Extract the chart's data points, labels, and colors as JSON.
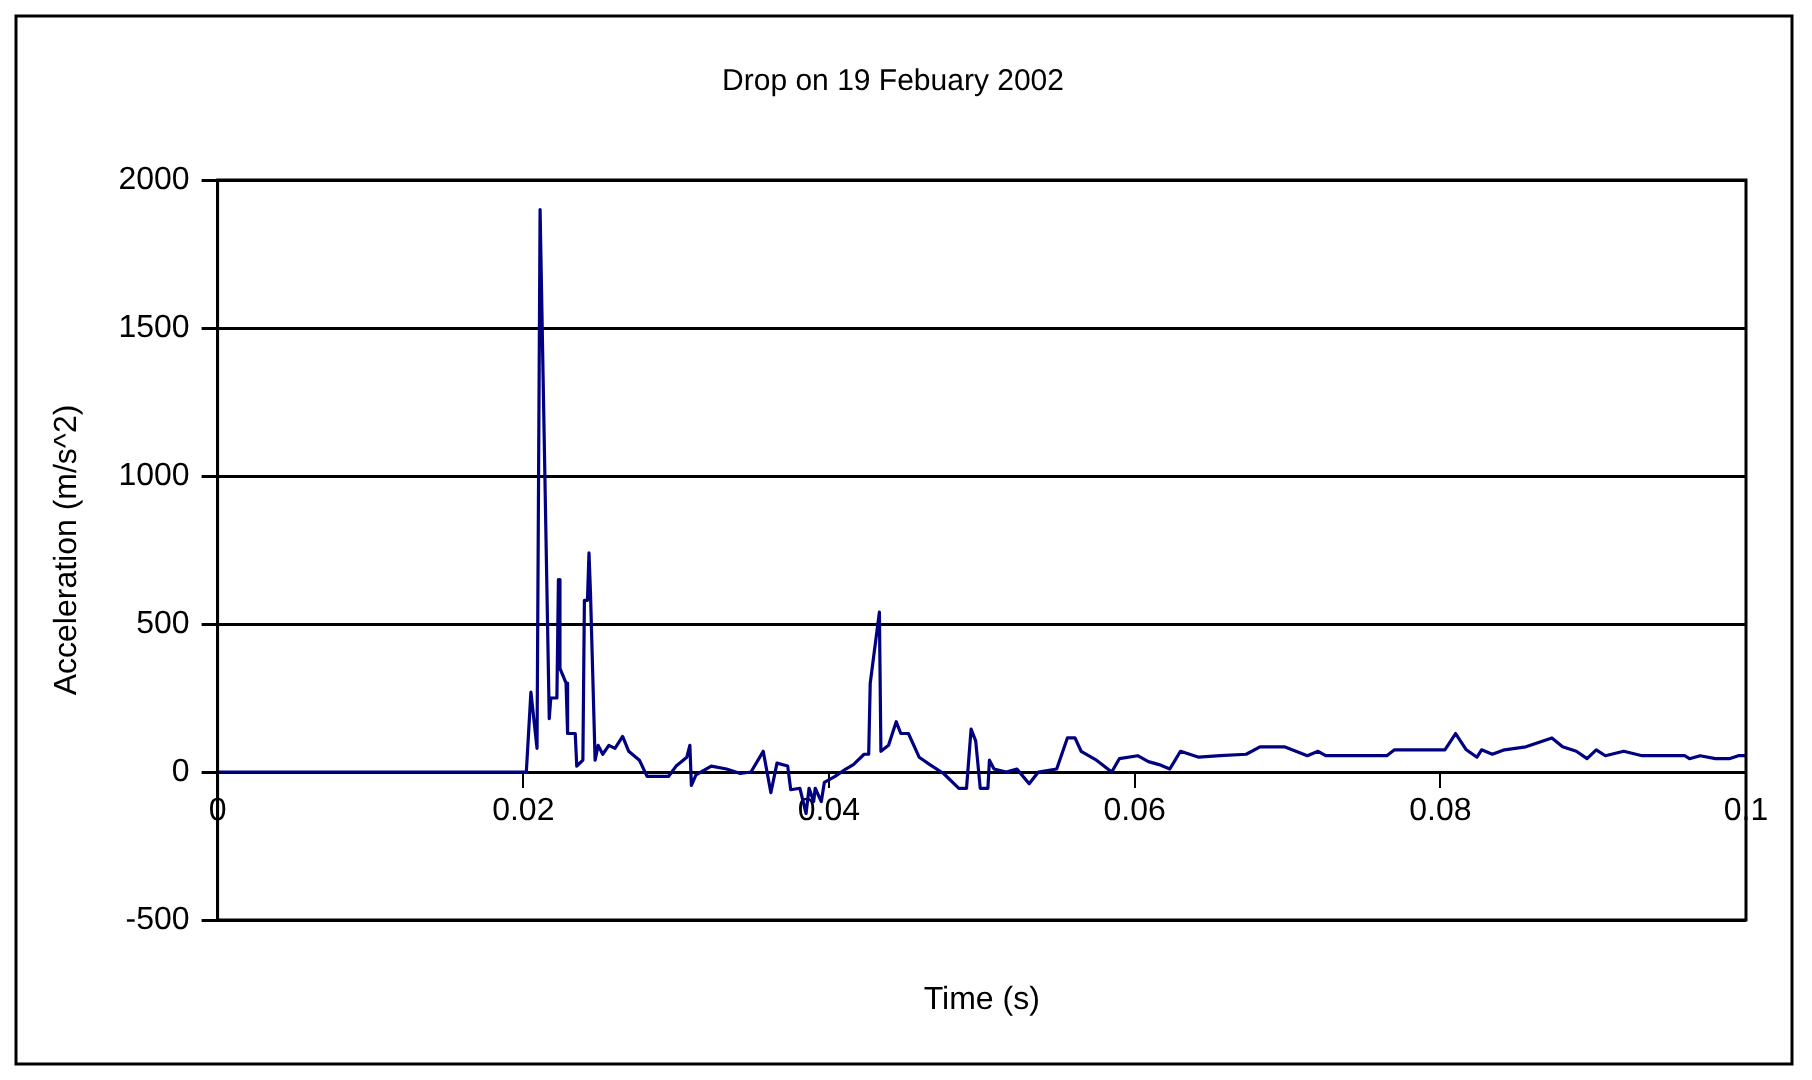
{
  "chart_data": {
    "type": "line",
    "title": "Drop on 19 Febuary 2002",
    "xlabel": "Time (s)",
    "ylabel": "Acceleration (m/s^2)",
    "xlim": [
      0,
      0.1
    ],
    "xticks": [
      0,
      0.02,
      0.04,
      0.06,
      0.08,
      0.1
    ],
    "ylim": [
      -500,
      2000
    ],
    "yticks": [
      -500,
      0,
      500,
      1000,
      1500,
      2000
    ],
    "grid": "y",
    "legend": false,
    "marker": "none",
    "line_style": "solid",
    "series": [
      {
        "color": "#000080",
        "x": [
          0,
          0.0202,
          0.0205,
          0.0209,
          0.0211,
          0.0217,
          0.0218,
          0.0222,
          0.0223,
          0.0224,
          0.0228,
          0.0229,
          0.0234,
          0.0235,
          0.0239,
          0.024,
          0.0242,
          0.0243,
          0.0244,
          0.0247,
          0.0249,
          0.0252,
          0.0256,
          0.026,
          0.0265,
          0.0269,
          0.0276,
          0.0281,
          0.0295,
          0.03,
          0.0307,
          0.0309,
          0.031,
          0.0313,
          0.0323,
          0.0333,
          0.0342,
          0.0349,
          0.0357,
          0.0362,
          0.0366,
          0.0373,
          0.0375,
          0.0381,
          0.0385,
          0.0387,
          0.039,
          0.0391,
          0.0395,
          0.0397,
          0.0404,
          0.0411,
          0.0416,
          0.0423,
          0.0426,
          0.0427,
          0.0433,
          0.0434,
          0.0439,
          0.0444,
          0.0447,
          0.0452,
          0.0459,
          0.0466,
          0.0475,
          0.0485,
          0.049,
          0.0493,
          0.0496,
          0.0499,
          0.0504,
          0.0505,
          0.0508,
          0.0516,
          0.0523,
          0.0531,
          0.0537,
          0.0549,
          0.0556,
          0.0561,
          0.0565,
          0.0575,
          0.0585,
          0.059,
          0.0602,
          0.0609,
          0.0616,
          0.0623,
          0.063,
          0.0642,
          0.0656,
          0.0673,
          0.0682,
          0.0698,
          0.0713,
          0.072,
          0.0725,
          0.0765,
          0.077,
          0.0779,
          0.0803,
          0.081,
          0.0817,
          0.0824,
          0.0827,
          0.0834,
          0.0842,
          0.0856,
          0.0873,
          0.088,
          0.0889,
          0.0896,
          0.0902,
          0.0908,
          0.092,
          0.0932,
          0.096,
          0.0963,
          0.097,
          0.098,
          0.0989,
          0.0995,
          0.1
        ],
        "values": [
          0,
          0,
          270,
          80,
          1900,
          180,
          250,
          250,
          650,
          350,
          300,
          130,
          130,
          20,
          40,
          580,
          580,
          740,
          600,
          40,
          90,
          60,
          90,
          80,
          120,
          70,
          40,
          -15,
          -15,
          20,
          50,
          90,
          -45,
          -10,
          20,
          10,
          -5,
          0,
          70,
          -70,
          30,
          20,
          -60,
          -55,
          -140,
          -55,
          -100,
          -55,
          -100,
          -35,
          -15,
          10,
          25,
          60,
          60,
          300,
          540,
          70,
          90,
          170,
          130,
          130,
          50,
          25,
          -5,
          -55,
          -55,
          145,
          105,
          -55,
          -55,
          40,
          10,
          0,
          10,
          -40,
          0,
          10,
          115,
          115,
          70,
          40,
          0,
          45,
          55,
          35,
          25,
          10,
          70,
          50,
          55,
          60,
          85,
          85,
          55,
          70,
          55,
          55,
          75,
          75,
          75,
          130,
          75,
          50,
          75,
          60,
          75,
          85,
          115,
          85,
          70,
          45,
          75,
          55,
          70,
          55,
          55,
          45,
          55,
          45,
          45,
          55,
          55
        ]
      }
    ]
  }
}
